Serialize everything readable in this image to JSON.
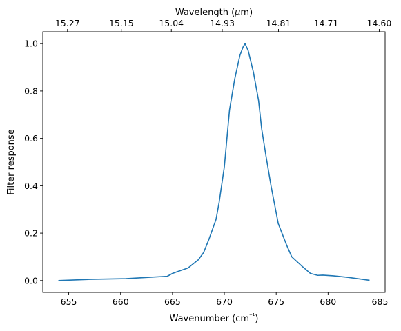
{
  "chart_data": {
    "type": "line",
    "title": "",
    "xlabel": "Wavenumber (cm⁻¹)",
    "ylabel": "Filter response",
    "top_xlabel": "Wavelength (μm)",
    "xlim": [
      652.5,
      685.5
    ],
    "ylim": [
      -0.05,
      1.05
    ],
    "grid": false,
    "legend": "none",
    "colors": {
      "line": "#1f77b4",
      "axes": "#000000",
      "background": "#ffffff"
    },
    "x_ticks": [
      655,
      660,
      665,
      670,
      675,
      680,
      685
    ],
    "x_tick_labels": [
      "655",
      "660",
      "665",
      "670",
      "675",
      "680",
      "685"
    ],
    "y_ticks": [
      0.0,
      0.2,
      0.4,
      0.6,
      0.8,
      1.0
    ],
    "y_tick_labels": [
      "0.0",
      "0.2",
      "0.4",
      "0.6",
      "0.8",
      "1.0"
    ],
    "top_ticks": [
      654.88,
      660.07,
      664.89,
      669.8,
      675.22,
      679.81,
      684.93
    ],
    "top_tick_labels": [
      "15.27",
      "15.15",
      "15.04",
      "14.93",
      "14.81",
      "14.71",
      "14.60"
    ],
    "series": [
      {
        "x": [
          654.0,
          657.0,
          660.5,
          662.5,
          664.5,
          665.0,
          665.5,
          666.5,
          667.5,
          668.0,
          668.5,
          669.2,
          669.5,
          670.0,
          670.5,
          671.0,
          671.5,
          671.8,
          672.0,
          672.3,
          672.8,
          673.3,
          673.6,
          674.0,
          674.5,
          675.2,
          676.0,
          676.5,
          677.5,
          678.3,
          679.0,
          679.5,
          680.5,
          682.0,
          684.0
        ],
        "y": [
          0.0,
          0.005,
          0.008,
          0.013,
          0.018,
          0.03,
          0.038,
          0.053,
          0.088,
          0.118,
          0.172,
          0.258,
          0.33,
          0.48,
          0.72,
          0.85,
          0.95,
          0.985,
          1.0,
          0.97,
          0.88,
          0.76,
          0.64,
          0.53,
          0.4,
          0.24,
          0.15,
          0.1,
          0.06,
          0.03,
          0.022,
          0.023,
          0.02,
          0.013,
          0.001
        ]
      }
    ]
  }
}
